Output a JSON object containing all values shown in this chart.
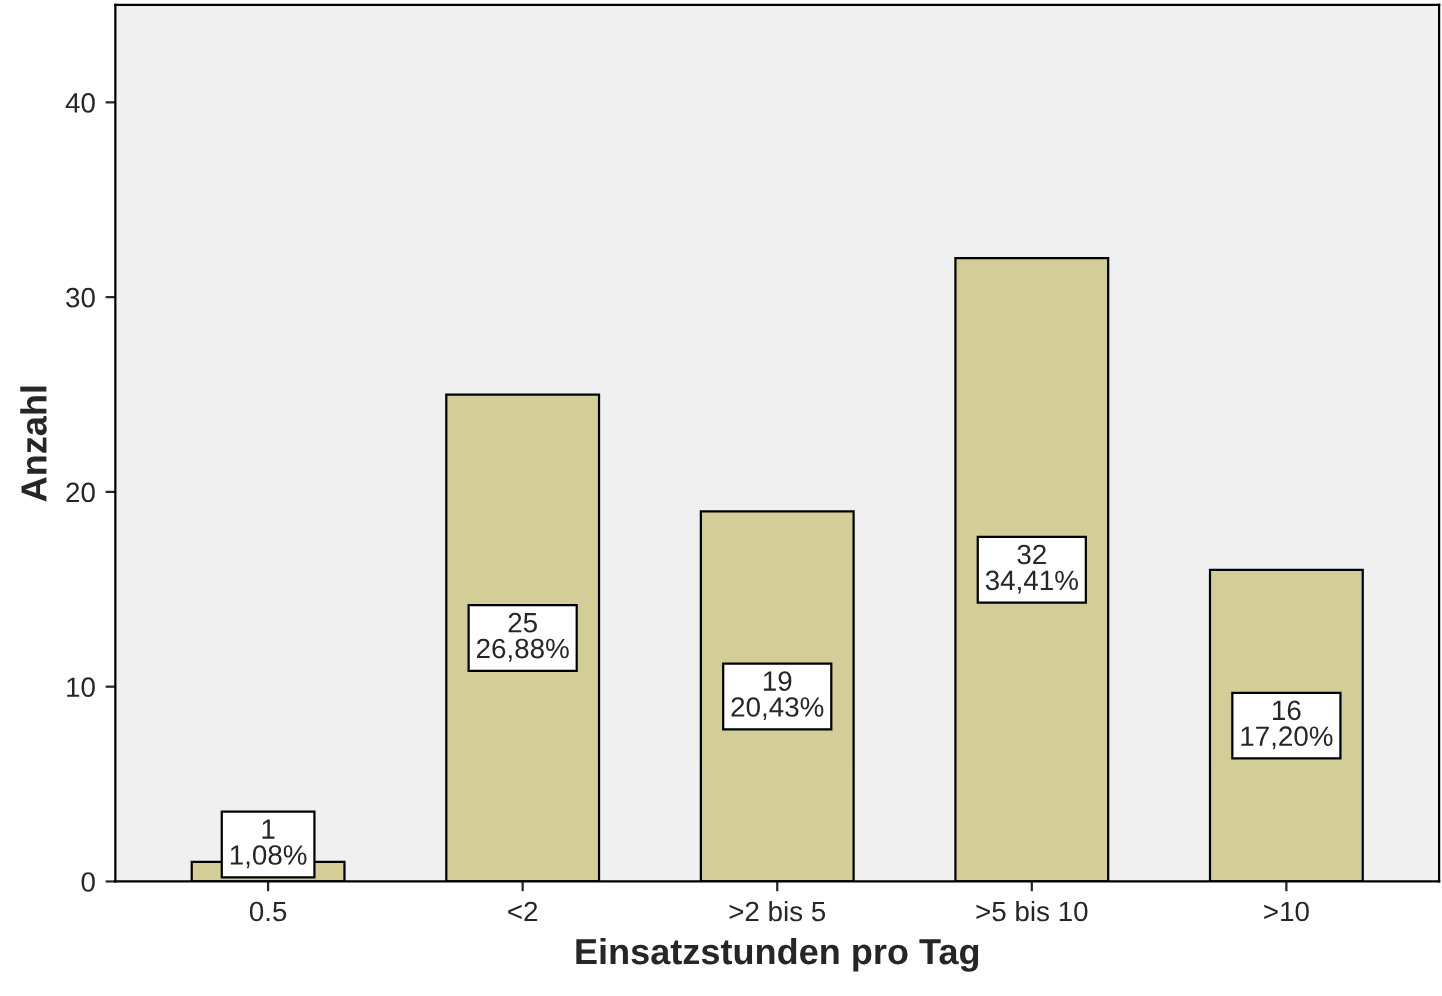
{
  "chart_data": {
    "type": "bar",
    "xlabel": "Einsatzstunden pro Tag",
    "ylabel": "Anzahl",
    "categories": [
      "0.5",
      "<2",
      ">2 bis 5",
      ">5 bis 10",
      ">10"
    ],
    "values": [
      1,
      25,
      19,
      32,
      16
    ],
    "value_labels": [
      "1\n1,08%",
      "25\n26,88%",
      "19\n20,43%",
      "32\n34,41%",
      "16\n17,20%"
    ],
    "color": "#d3ce97",
    "ylim": [
      0,
      45
    ],
    "yticks": [
      0,
      10,
      20,
      30,
      40
    ],
    "grid": false,
    "legend": false
  }
}
